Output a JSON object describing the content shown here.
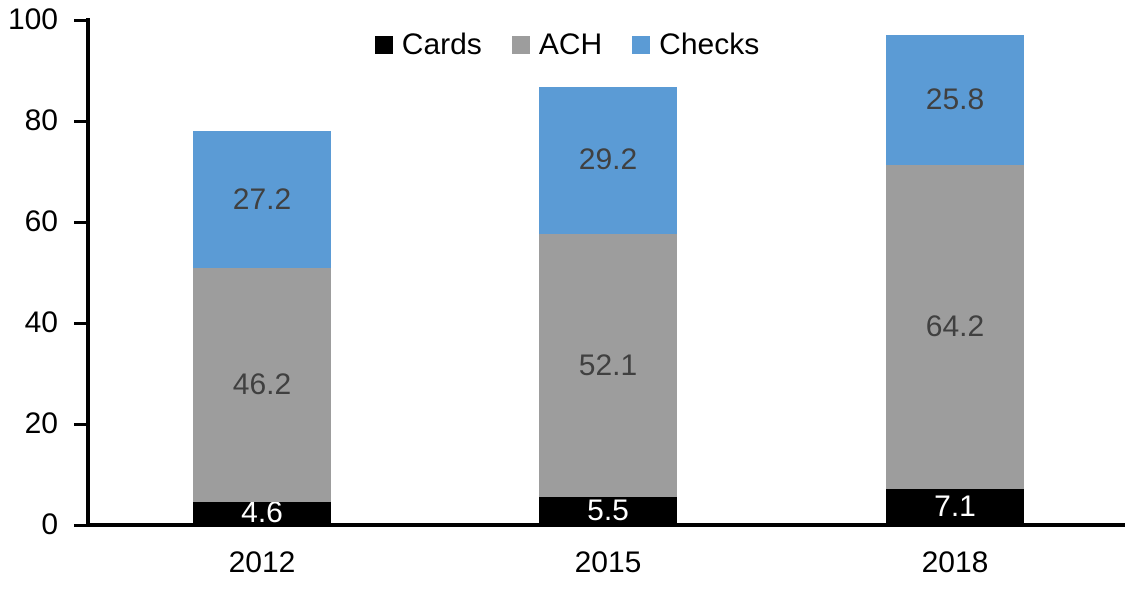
{
  "chart_data": {
    "type": "bar",
    "stacked": true,
    "title": "",
    "categories": [
      "2012",
      "2015",
      "2018"
    ],
    "series": [
      {
        "name": "Cards",
        "color": "#000000",
        "label_color": "#FFFFFF",
        "values": [
          4.6,
          5.5,
          7.1
        ]
      },
      {
        "name": "ACH",
        "color": "#9D9D9D",
        "label_color": "#404040",
        "values": [
          46.2,
          52.1,
          64.2
        ]
      },
      {
        "name": "Checks",
        "color": "#5B9BD5",
        "label_color": "#404040",
        "values": [
          27.2,
          29.2,
          25.8
        ]
      }
    ],
    "totals": [
      78.0,
      86.8,
      97.1
    ],
    "xlabel": "",
    "ylabel": "",
    "ylim": [
      0,
      100
    ],
    "yticks": [
      0,
      20,
      40,
      60,
      80,
      100
    ],
    "grid": false,
    "legend_position": "top-center",
    "legend_entries": [
      "Cards",
      "ACH",
      "Checks"
    ],
    "axis_color": "#000000",
    "background_color": "#FFFFFF"
  }
}
